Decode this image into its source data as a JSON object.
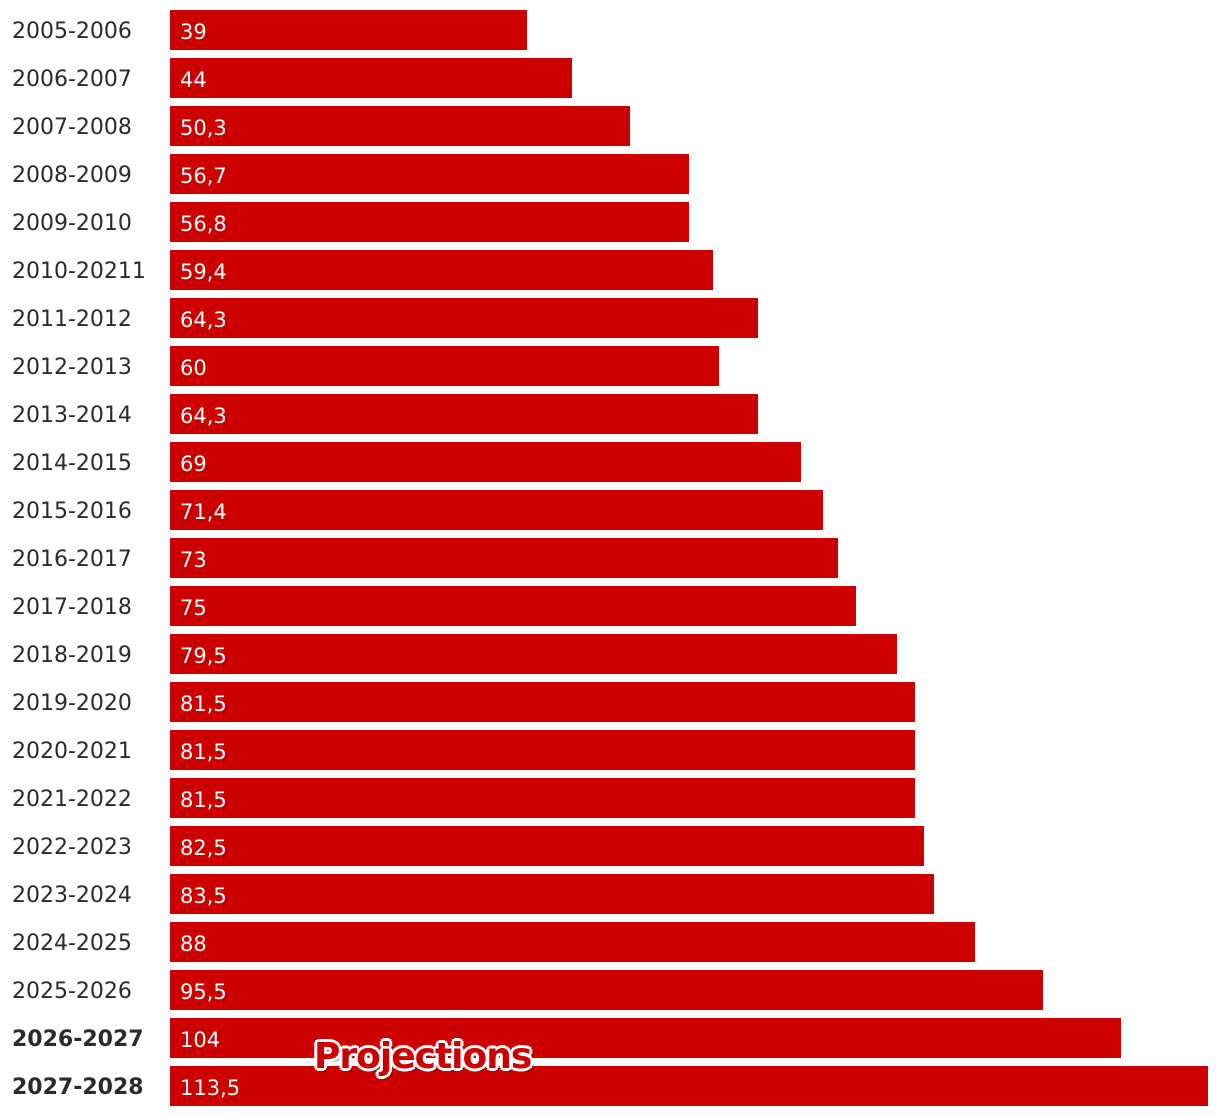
{
  "chart_data": {
    "type": "bar",
    "orientation": "horizontal",
    "categories": [
      "2005-2006",
      "2006-2007",
      "2007-2008",
      "2008-2009",
      "2009-2010",
      "2010-20211",
      "2011-2012",
      "2012-2013",
      "2013-2014",
      "2014-2015",
      "2015-2016",
      "2016-2017",
      "2017-2018",
      "2018-2019",
      "2019-2020",
      "2020-2021",
      "2021-2022",
      "2022-2023",
      "2023-2024",
      "2024-2025",
      "2025-2026",
      "2026-2027",
      "2027-2028"
    ],
    "values": [
      39,
      44,
      50.3,
      56.7,
      56.8,
      59.4,
      64.3,
      60,
      64.3,
      69,
      71.4,
      73,
      75,
      79.5,
      81.5,
      81.5,
      81.5,
      82.5,
      83.5,
      88,
      95.5,
      104,
      113.5
    ],
    "value_labels": [
      "39",
      "44",
      "50,3",
      "56,7",
      "56,8",
      "59,4",
      "64,3",
      "60",
      "64,3",
      "69",
      "71,4",
      "73",
      "75",
      "79,5",
      "81,5",
      "81,5",
      "81,5",
      "82,5",
      "83,5",
      "88",
      "95,5",
      "104",
      "113,5"
    ],
    "bold_categories": [
      "2026-2027",
      "2027-2028"
    ],
    "annotation": "Projections",
    "xlim": [
      0,
      113.5
    ],
    "bar_color": "#cc0000",
    "grid": false,
    "legend": "none"
  }
}
